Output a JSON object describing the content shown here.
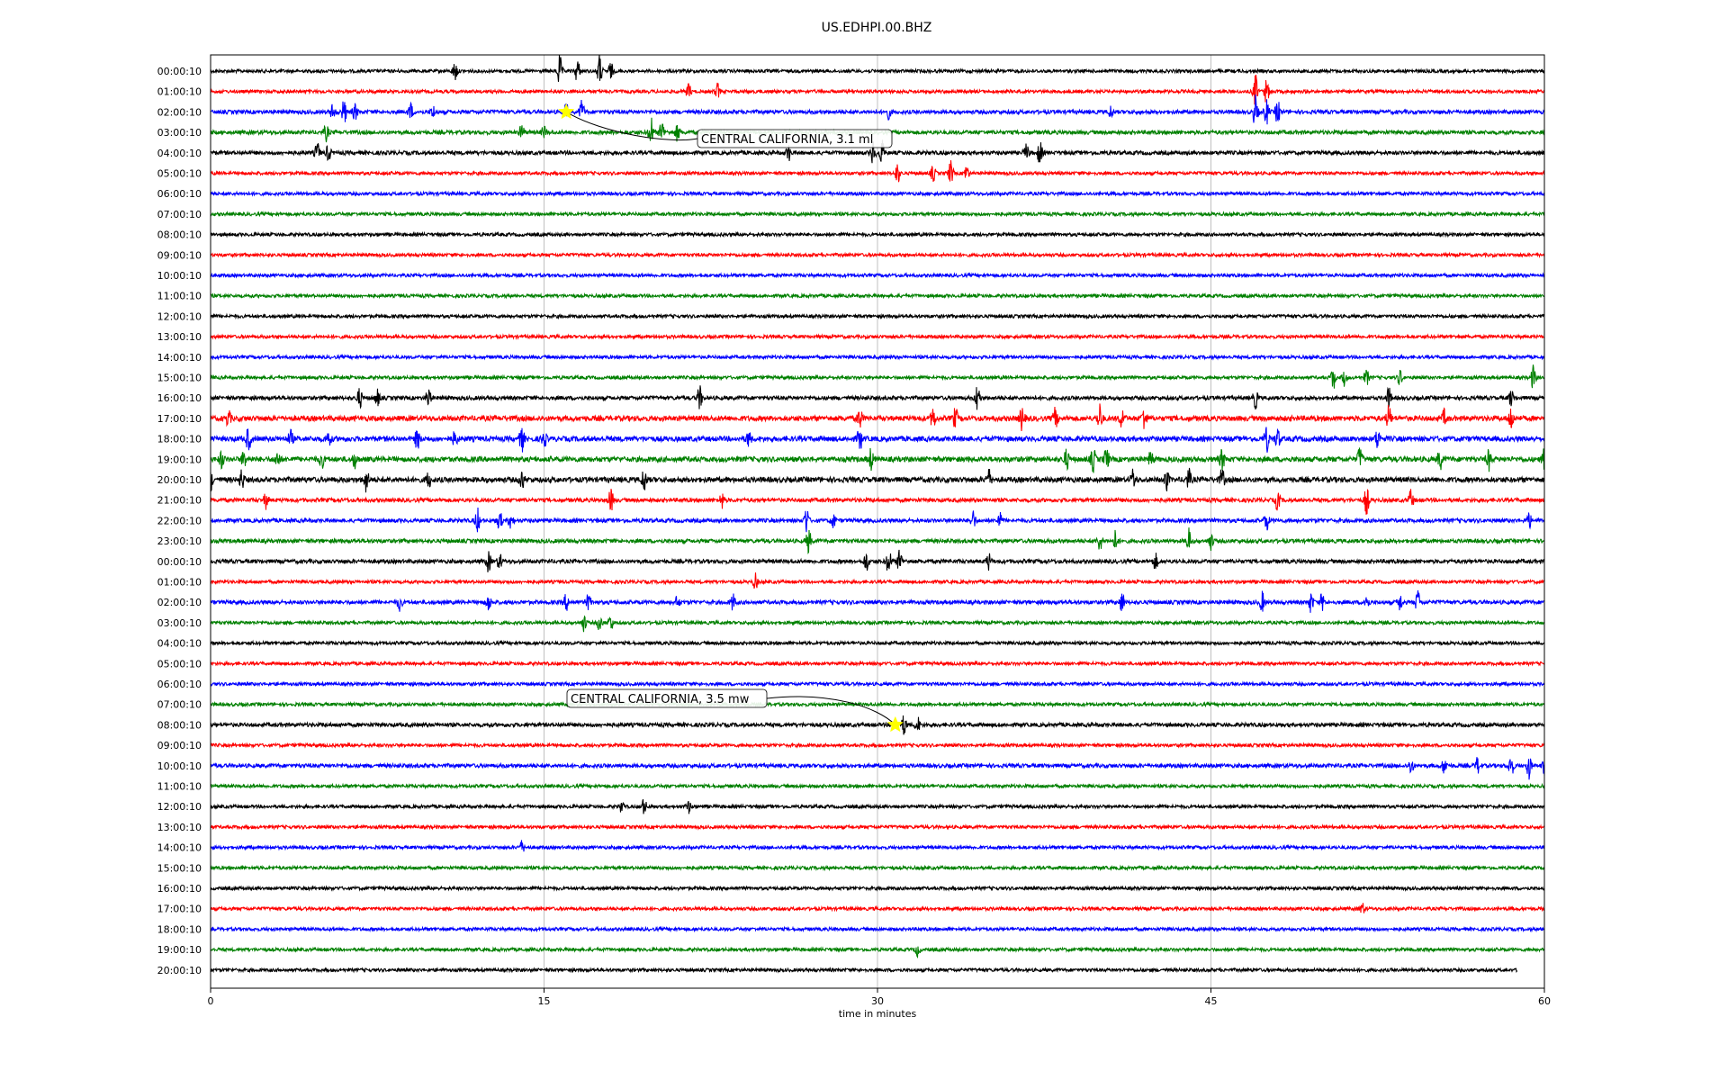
{
  "chart_data": {
    "type": "line",
    "title": "US.EDHPI.00.BHZ",
    "xlabel": "time in minutes",
    "xlim": [
      0,
      60
    ],
    "x_ticks": [
      "0",
      "15",
      "30",
      "45",
      "60"
    ],
    "x_tick_values": [
      0,
      15,
      30,
      45,
      60
    ],
    "grid": "vertical lines at x ticks",
    "trace_colors": [
      "#000000",
      "#ff0000",
      "#0000ff",
      "#008000"
    ],
    "row_labels": [
      "00:00:10",
      "01:00:10",
      "02:00:10",
      "03:00:10",
      "04:00:10",
      "05:00:10",
      "06:00:10",
      "07:00:10",
      "08:00:10",
      "09:00:10",
      "10:00:10",
      "11:00:10",
      "12:00:10",
      "13:00:10",
      "14:00:10",
      "15:00:10",
      "16:00:10",
      "17:00:10",
      "18:00:10",
      "19:00:10",
      "20:00:10",
      "21:00:10",
      "22:00:10",
      "23:00:10",
      "00:00:10",
      "01:00:10",
      "02:00:10",
      "03:00:10",
      "04:00:10",
      "05:00:10",
      "06:00:10",
      "07:00:10",
      "08:00:10",
      "09:00:10",
      "10:00:10",
      "11:00:10",
      "12:00:10",
      "13:00:10",
      "14:00:10",
      "15:00:10",
      "16:00:10",
      "17:00:10",
      "18:00:10",
      "19:00:10",
      "20:00:10"
    ],
    "rows": [
      {
        "noise": 1.0,
        "events": [
          [
            11,
            2.5
          ],
          [
            15.7,
            4
          ],
          [
            16.5,
            3
          ],
          [
            17.5,
            4
          ],
          [
            18,
            2
          ]
        ]
      },
      {
        "noise": 1.0,
        "events": [
          [
            21.5,
            2
          ],
          [
            22.8,
            2
          ],
          [
            47,
            4
          ],
          [
            47.5,
            3
          ]
        ]
      },
      {
        "noise": 1.2,
        "events": [
          [
            5.5,
            2
          ],
          [
            6,
            3
          ],
          [
            6.5,
            2
          ],
          [
            9,
            2
          ],
          [
            10,
            1.5
          ],
          [
            16,
            2
          ],
          [
            16.7,
            3
          ],
          [
            30.5,
            1.5
          ],
          [
            40.5,
            1.5
          ],
          [
            47,
            4
          ],
          [
            47.5,
            3
          ],
          [
            48,
            3
          ]
        ]
      },
      {
        "noise": 1.2,
        "events": [
          [
            5.2,
            2
          ],
          [
            14,
            2
          ],
          [
            15,
            1.5
          ],
          [
            19.8,
            4
          ],
          [
            20.3,
            3
          ],
          [
            21,
            2
          ]
        ]
      },
      {
        "noise": 1.2,
        "events": [
          [
            4.8,
            2.5
          ],
          [
            5.3,
            2
          ],
          [
            26,
            2
          ],
          [
            29.8,
            3
          ],
          [
            30.2,
            3
          ],
          [
            36.7,
            2
          ],
          [
            37.3,
            3
          ]
        ]
      },
      {
        "noise": 1.0,
        "events": [
          [
            30.9,
            2.5
          ],
          [
            32.5,
            2
          ],
          [
            33.3,
            3
          ],
          [
            34,
            2
          ]
        ]
      },
      {
        "noise": 1.0,
        "events": []
      },
      {
        "noise": 1.0,
        "events": []
      },
      {
        "noise": 1.0,
        "events": []
      },
      {
        "noise": 1.0,
        "events": []
      },
      {
        "noise": 1.0,
        "events": []
      },
      {
        "noise": 1.0,
        "events": []
      },
      {
        "noise": 1.0,
        "events": []
      },
      {
        "noise": 1.0,
        "events": []
      },
      {
        "noise": 1.0,
        "events": []
      },
      {
        "noise": 1.0,
        "events": [
          [
            50.5,
            3
          ],
          [
            51,
            2
          ],
          [
            52,
            2
          ],
          [
            53.5,
            2
          ],
          [
            59.5,
            3
          ]
        ]
      },
      {
        "noise": 1.2,
        "events": [
          [
            6.7,
            2.5
          ],
          [
            7.5,
            2
          ],
          [
            9.8,
            2.5
          ],
          [
            22,
            3
          ],
          [
            34.5,
            3.5
          ],
          [
            47,
            2.5
          ],
          [
            53,
            2.5
          ],
          [
            58.5,
            2
          ]
        ]
      },
      {
        "noise": 1.6,
        "events": [
          [
            0.8,
            2
          ],
          [
            29.2,
            2.5
          ],
          [
            32.5,
            2.5
          ],
          [
            33.5,
            2.5
          ],
          [
            36.5,
            3
          ],
          [
            38,
            2.5
          ],
          [
            40,
            3.5
          ],
          [
            41,
            2.5
          ],
          [
            42,
            3
          ],
          [
            53,
            3
          ],
          [
            55.5,
            2
          ],
          [
            58.5,
            3
          ]
        ]
      },
      {
        "noise": 1.6,
        "events": [
          [
            1.7,
            3
          ],
          [
            3.6,
            2
          ],
          [
            5.3,
            2
          ],
          [
            9.3,
            2.5
          ],
          [
            11,
            2
          ],
          [
            14,
            3
          ],
          [
            15,
            2
          ],
          [
            24.2,
            2
          ],
          [
            29.2,
            3
          ],
          [
            47.5,
            3
          ],
          [
            48,
            2.5
          ],
          [
            52.5,
            2.5
          ]
        ]
      },
      {
        "noise": 1.6,
        "events": [
          [
            0.5,
            2
          ],
          [
            1.5,
            2
          ],
          [
            3,
            2
          ],
          [
            5,
            2
          ],
          [
            6.5,
            2
          ],
          [
            29.7,
            2.5
          ],
          [
            38.5,
            2.5
          ],
          [
            39.7,
            3
          ],
          [
            40.3,
            3
          ],
          [
            42.3,
            2
          ],
          [
            45.5,
            2.5
          ],
          [
            51.7,
            3
          ],
          [
            55.3,
            2.5
          ],
          [
            57.5,
            2.5
          ],
          [
            60,
            3
          ]
        ]
      },
      {
        "noise": 1.6,
        "events": [
          [
            0,
            2.5
          ],
          [
            1.4,
            2.5
          ],
          [
            7,
            3
          ],
          [
            9.8,
            2
          ],
          [
            14,
            2.5
          ],
          [
            19.5,
            3
          ],
          [
            35,
            2.5
          ],
          [
            41.5,
            2.5
          ],
          [
            43,
            2.5
          ],
          [
            44,
            2.5
          ],
          [
            45.5,
            2.5
          ]
        ]
      },
      {
        "noise": 1.2,
        "events": [
          [
            2.5,
            2
          ],
          [
            18,
            3
          ],
          [
            23,
            2
          ],
          [
            48,
            2.5
          ],
          [
            52,
            3.5
          ],
          [
            54,
            2.5
          ]
        ]
      },
      {
        "noise": 1.2,
        "events": [
          [
            12,
            3
          ],
          [
            13,
            2.5
          ],
          [
            13.5,
            2
          ],
          [
            26.8,
            3.5
          ],
          [
            28,
            2
          ],
          [
            34.3,
            2.5
          ],
          [
            35.5,
            2
          ],
          [
            47.5,
            2.5
          ],
          [
            59.3,
            2
          ]
        ]
      },
      {
        "noise": 1.2,
        "events": [
          [
            26.9,
            3
          ],
          [
            40,
            2.5
          ],
          [
            40.7,
            2.5
          ],
          [
            44,
            3
          ],
          [
            45,
            2
          ]
        ]
      },
      {
        "noise": 1.2,
        "events": [
          [
            12.5,
            2.5
          ],
          [
            13,
            2
          ],
          [
            29.5,
            2.5
          ],
          [
            30.5,
            3.5
          ],
          [
            31,
            3
          ],
          [
            35,
            2
          ],
          [
            42.5,
            2
          ]
        ]
      },
      {
        "noise": 1.0,
        "events": [
          [
            24.5,
            2
          ]
        ]
      },
      {
        "noise": 1.2,
        "events": [
          [
            8.5,
            2
          ],
          [
            12.5,
            2
          ],
          [
            16,
            2
          ],
          [
            17,
            2
          ],
          [
            21,
            1.5
          ],
          [
            23.5,
            2
          ],
          [
            41,
            2.5
          ],
          [
            47.3,
            2.5
          ],
          [
            49.5,
            2.5
          ],
          [
            50,
            2
          ],
          [
            52,
            2
          ],
          [
            53.5,
            2
          ],
          [
            54.3,
            3
          ]
        ]
      },
      {
        "noise": 1.0,
        "events": [
          [
            16.8,
            2
          ],
          [
            17.5,
            2
          ],
          [
            18,
            2
          ]
        ]
      },
      {
        "noise": 1.0,
        "events": []
      },
      {
        "noise": 1.0,
        "events": []
      },
      {
        "noise": 1.0,
        "events": []
      },
      {
        "noise": 1.0,
        "events": []
      },
      {
        "noise": 1.2,
        "events": [
          [
            31.2,
            2.5
          ],
          [
            31.8,
            2
          ]
        ]
      },
      {
        "noise": 1.0,
        "events": []
      },
      {
        "noise": 1.2,
        "events": [
          [
            54,
            2
          ],
          [
            55.5,
            2
          ],
          [
            57,
            2
          ],
          [
            58.5,
            3
          ],
          [
            59.3,
            3
          ],
          [
            60,
            2
          ]
        ]
      },
      {
        "noise": 1.0,
        "events": []
      },
      {
        "noise": 1.0,
        "events": [
          [
            18.5,
            1.5
          ],
          [
            19.5,
            2
          ],
          [
            21.5,
            1.5
          ]
        ]
      },
      {
        "noise": 1.0,
        "events": []
      },
      {
        "noise": 1.0,
        "events": [
          [
            14,
            1.5
          ]
        ]
      },
      {
        "noise": 1.0,
        "events": []
      },
      {
        "noise": 1.0,
        "events": []
      },
      {
        "noise": 1.0,
        "events": [
          [
            51.8,
            1.5
          ]
        ]
      },
      {
        "noise": 1.0,
        "events": []
      },
      {
        "noise": 1.0,
        "events": [
          [
            31.8,
            1.5
          ]
        ]
      },
      {
        "noise": 1.0,
        "events": []
      }
    ],
    "last_row_end_minute": 58.8,
    "annotations": [
      {
        "text": "CENTRAL CALIFORNIA, 3.1 ml",
        "row": 2,
        "x": 16.0,
        "marker_color": "#ffff00"
      },
      {
        "text": "CENTRAL CALIFORNIA, 3.5 mw",
        "row": 32,
        "x": 30.8,
        "marker_color": "#ffff00"
      }
    ]
  }
}
